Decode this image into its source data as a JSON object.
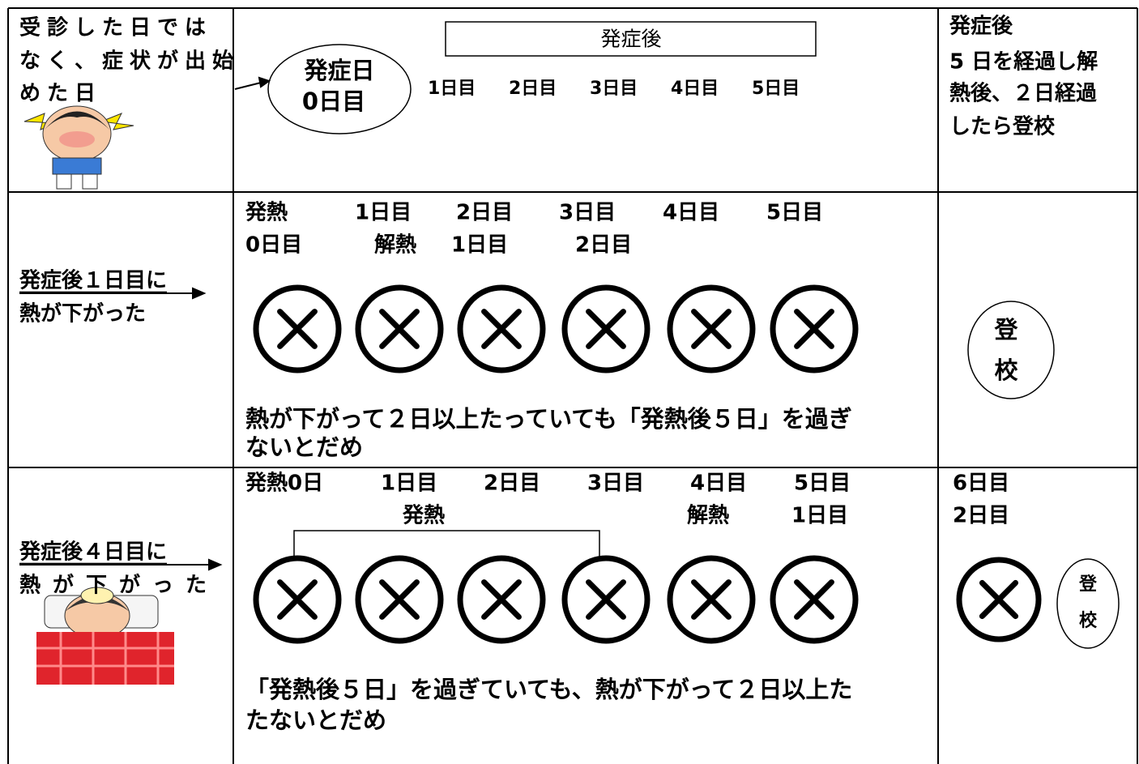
{
  "row1": {
    "condition": [
      "受診した日では",
      "なく、症状が出始",
      "めた日"
    ],
    "header": "発症後",
    "onset": [
      "発症日",
      "0日目"
    ],
    "days": [
      "1日目",
      "2日目",
      "3日目",
      "4日目",
      "5日目"
    ],
    "result": [
      "発症後",
      "5 日を経過し解",
      "熱後、２日経過",
      "したら登校"
    ]
  },
  "row2": {
    "condition": [
      "発症後１日目に",
      "熱が下がった"
    ],
    "day_labels": [
      "発熱",
      "1日目",
      "2日目",
      "3日目",
      "4日目",
      "5日目"
    ],
    "sub_labels": [
      "0日目",
      "解熱",
      "1日目",
      "2日目"
    ],
    "note": [
      "熱が下がって２日以上たっていても「発熱後５日」を過ぎ",
      "ないとだめ"
    ],
    "badge": [
      "登",
      "校"
    ]
  },
  "row3": {
    "condition": [
      "発症後４日目に",
      "熱が下がった"
    ],
    "day_labels": [
      "発熱0日",
      "1日目",
      "2日目",
      "3日目",
      "4日目",
      "5日目"
    ],
    "sub_labels": [
      "発熱",
      "解熱",
      "1日目"
    ],
    "note": [
      "「発熱後５日」を過ぎていても、熱が下がって２日以上た",
      "たないとだめ"
    ],
    "result": [
      "6日目",
      "2日目"
    ],
    "badge": [
      "登",
      "校"
    ]
  }
}
